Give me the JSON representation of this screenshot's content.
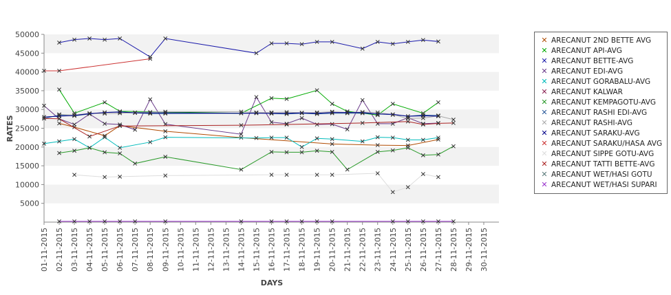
{
  "chart_data": {
    "type": "line",
    "xlabel": "DAYS",
    "ylabel": "RATES",
    "ylim": [
      0,
      50000
    ],
    "yticks": [
      5000,
      10000,
      15000,
      20000,
      25000,
      30000,
      35000,
      40000,
      45000,
      50000
    ],
    "x": [
      "01-11-2015",
      "02-11-2015",
      "03-11-2015",
      "04-11-2015",
      "05-11-2015",
      "06-11-2015",
      "07-11-2015",
      "08-11-2015",
      "09-11-2015",
      "10-11-2015",
      "11-11-2015",
      "12-11-2015",
      "13-11-2015",
      "14-11-2015",
      "15-11-2015",
      "16-11-2015",
      "17-11-2015",
      "18-11-2015",
      "19-11-2015",
      "20-11-2015",
      "21-11-2015",
      "22-11-2015",
      "23-11-2015",
      "24-11-2015",
      "25-11-2015",
      "26-11-2015",
      "27-11-2015",
      "28-11-2015",
      "29-11-2015",
      "30-11-2015"
    ],
    "legend_position": "right",
    "grid": "alternating horizontal bands",
    "series": [
      {
        "name": "ARECANUT 2ND BETTE AVG",
        "color": "#b04a00",
        "points": [
          [
            2,
            26300
          ],
          [
            3,
            25300
          ],
          [
            5,
            23000
          ],
          [
            6,
            25700
          ],
          [
            9,
            24200
          ],
          [
            14,
            22500
          ],
          [
            20,
            20800
          ],
          [
            23,
            20500
          ],
          [
            25,
            20400
          ],
          [
            27,
            22000
          ]
        ]
      },
      {
        "name": "ARECANUT API-AVG",
        "color": "#00aa00",
        "points": [
          [
            2,
            35300
          ],
          [
            3,
            29000
          ],
          [
            5,
            31900
          ],
          [
            6,
            29500
          ],
          [
            14,
            29000
          ],
          [
            16,
            33000
          ],
          [
            17,
            32800
          ],
          [
            19,
            35100
          ],
          [
            20,
            31500
          ],
          [
            21,
            29500
          ],
          [
            23,
            28500
          ],
          [
            24,
            31500
          ],
          [
            26,
            29000
          ],
          [
            27,
            31900
          ]
        ]
      },
      {
        "name": "ARECANUT BETTE-AVG",
        "color": "#1a1aaa",
        "points": [
          [
            2,
            47800
          ],
          [
            3,
            48600
          ],
          [
            4,
            48900
          ],
          [
            5,
            48600
          ],
          [
            6,
            48900
          ],
          [
            8,
            44000
          ],
          [
            9,
            48900
          ],
          [
            15,
            45000
          ],
          [
            16,
            47600
          ],
          [
            17,
            47600
          ],
          [
            18,
            47400
          ],
          [
            19,
            48000
          ],
          [
            20,
            48000
          ],
          [
            22,
            46200
          ],
          [
            23,
            48000
          ],
          [
            24,
            47500
          ],
          [
            25,
            48000
          ],
          [
            26,
            48500
          ],
          [
            27,
            48100
          ]
        ]
      },
      {
        "name": "ARECANUT EDI-AVG",
        "color": "#6a3a8a",
        "points": [
          [
            1,
            31000
          ],
          [
            2,
            27500
          ],
          [
            3,
            26000
          ],
          [
            4,
            28800
          ],
          [
            5,
            26200
          ],
          [
            6,
            26000
          ],
          [
            7,
            24600
          ],
          [
            8,
            32700
          ],
          [
            9,
            26100
          ],
          [
            14,
            23400
          ],
          [
            15,
            33300
          ],
          [
            16,
            26600
          ],
          [
            17,
            26200
          ],
          [
            18,
            27700
          ],
          [
            19,
            26000
          ],
          [
            20,
            26100
          ],
          [
            21,
            24700
          ],
          [
            22,
            32500
          ],
          [
            23,
            26200
          ],
          [
            24,
            26200
          ],
          [
            25,
            27800
          ],
          [
            26,
            26200
          ],
          [
            27,
            26400
          ]
        ]
      },
      {
        "name": "ARECANUT GORABALU-AVG",
        "color": "#00bbbb",
        "points": [
          [
            1,
            20900
          ],
          [
            2,
            21500
          ],
          [
            3,
            22100
          ],
          [
            4,
            19800
          ],
          [
            5,
            22600
          ],
          [
            6,
            19800
          ],
          [
            8,
            21300
          ],
          [
            9,
            22600
          ],
          [
            15,
            22400
          ],
          [
            16,
            22500
          ],
          [
            17,
            22500
          ],
          [
            18,
            20000
          ],
          [
            19,
            22300
          ],
          [
            20,
            22100
          ],
          [
            22,
            21500
          ],
          [
            23,
            22600
          ],
          [
            24,
            22500
          ],
          [
            25,
            21900
          ],
          [
            26,
            21900
          ],
          [
            27,
            22500
          ]
        ]
      },
      {
        "name": "ARECANUT KALWAR",
        "color": "#8b2252",
        "points": []
      },
      {
        "name": "ARECANUT KEMPAGOTU-AVG",
        "color": "#2a9a2a",
        "points": [
          [
            2,
            18400
          ],
          [
            3,
            19000
          ],
          [
            4,
            19800
          ],
          [
            5,
            18600
          ],
          [
            6,
            18300
          ],
          [
            7,
            15600
          ],
          [
            9,
            17400
          ],
          [
            14,
            14000
          ],
          [
            16,
            18700
          ],
          [
            17,
            18600
          ],
          [
            18,
            18600
          ],
          [
            19,
            19000
          ],
          [
            20,
            18700
          ],
          [
            21,
            14000
          ],
          [
            23,
            18700
          ],
          [
            24,
            19100
          ],
          [
            25,
            19800
          ],
          [
            26,
            17800
          ],
          [
            27,
            18000
          ],
          [
            28,
            20200
          ]
        ]
      },
      {
        "name": "ARECANUT RASHI EDI-AVG",
        "color": "#2a5a9a",
        "points": [
          [
            1,
            27600
          ],
          [
            2,
            28500
          ],
          [
            3,
            28300
          ],
          [
            4,
            28800
          ],
          [
            5,
            29200
          ],
          [
            6,
            29400
          ],
          [
            7,
            29100
          ],
          [
            8,
            28900
          ],
          [
            9,
            28900
          ],
          [
            14,
            29000
          ],
          [
            15,
            29100
          ],
          [
            16,
            28900
          ],
          [
            17,
            28800
          ],
          [
            18,
            29000
          ],
          [
            19,
            28800
          ],
          [
            20,
            29000
          ],
          [
            21,
            29000
          ],
          [
            22,
            29000
          ],
          [
            23,
            28800
          ],
          [
            24,
            28600
          ],
          [
            25,
            28200
          ],
          [
            26,
            28500
          ],
          [
            27,
            28400
          ]
        ]
      },
      {
        "name": "ARECANUT RASHI-AVG",
        "color": "#aaaaaa",
        "points": [
          [
            2,
            28700
          ],
          [
            3,
            28500
          ],
          [
            4,
            29000
          ],
          [
            5,
            28900
          ],
          [
            6,
            29000
          ],
          [
            7,
            29200
          ],
          [
            8,
            29300
          ],
          [
            9,
            29400
          ],
          [
            14,
            29400
          ],
          [
            15,
            29200
          ],
          [
            16,
            29200
          ],
          [
            17,
            29300
          ],
          [
            18,
            29100
          ],
          [
            19,
            29200
          ],
          [
            20,
            29400
          ],
          [
            21,
            29200
          ],
          [
            22,
            29300
          ],
          [
            23,
            29200
          ],
          [
            24,
            28600
          ],
          [
            25,
            27600
          ],
          [
            26,
            27700
          ],
          [
            27,
            28300
          ],
          [
            28,
            27300
          ]
        ]
      },
      {
        "name": "ARECANUT SARAKU-AVG",
        "color": "#000088",
        "points": [
          [
            1,
            28000
          ],
          [
            2,
            28200
          ],
          [
            3,
            28400
          ],
          [
            4,
            28900
          ],
          [
            5,
            29200
          ],
          [
            6,
            29300
          ],
          [
            7,
            29100
          ],
          [
            8,
            29100
          ],
          [
            9,
            29100
          ],
          [
            14,
            29000
          ],
          [
            15,
            29000
          ],
          [
            16,
            29000
          ],
          [
            17,
            29000
          ],
          [
            18,
            29100
          ],
          [
            19,
            29000
          ],
          [
            20,
            29200
          ],
          [
            21,
            29200
          ],
          [
            22,
            29200
          ],
          [
            23,
            28800
          ],
          [
            24,
            28700
          ],
          [
            25,
            28200
          ],
          [
            26,
            28300
          ],
          [
            27,
            28200
          ]
        ]
      },
      {
        "name": "ARECANUT SARAKU/HASA AVG",
        "color": "#cc3333",
        "points": [
          [
            1,
            40300
          ],
          [
            2,
            40300
          ],
          [
            8,
            43500
          ]
        ]
      },
      {
        "name": "ARECANUT SIPPE GOTU-AVG",
        "color": "#dddddd",
        "points": [
          [
            3,
            12600
          ],
          [
            5,
            12000
          ],
          [
            6,
            12100
          ],
          [
            9,
            12400
          ],
          [
            16,
            12600
          ],
          [
            17,
            12600
          ],
          [
            19,
            12600
          ],
          [
            20,
            12600
          ],
          [
            23,
            13000
          ],
          [
            24,
            8000
          ],
          [
            25,
            9300
          ],
          [
            26,
            12800
          ],
          [
            27,
            12000
          ]
        ]
      },
      {
        "name": "ARECANUT TATTI BETTE-AVG",
        "color": "#aa2222",
        "points": [
          [
            1,
            27600
          ],
          [
            2,
            27500
          ],
          [
            4,
            22800
          ],
          [
            6,
            25600
          ],
          [
            14,
            25800
          ],
          [
            17,
            26000
          ],
          [
            22,
            26400
          ],
          [
            25,
            26800
          ],
          [
            26,
            26000
          ],
          [
            27,
            26300
          ],
          [
            28,
            26400
          ]
        ]
      },
      {
        "name": "ARECANUT WET/HASI GOTU",
        "color": "#5a7a7a",
        "points": []
      },
      {
        "name": "ARECANUT WET/HASI SUPARI",
        "color": "#9933cc",
        "points": [
          [
            2,
            200
          ],
          [
            3,
            200
          ],
          [
            4,
            200
          ],
          [
            5,
            200
          ],
          [
            6,
            200
          ],
          [
            7,
            200
          ],
          [
            9,
            200
          ],
          [
            14,
            200
          ],
          [
            16,
            200
          ],
          [
            17,
            200
          ],
          [
            18,
            200
          ],
          [
            19,
            200
          ],
          [
            20,
            200
          ],
          [
            24,
            200
          ],
          [
            25,
            200
          ],
          [
            26,
            200
          ],
          [
            27,
            200
          ],
          [
            28,
            200
          ]
        ]
      }
    ]
  }
}
